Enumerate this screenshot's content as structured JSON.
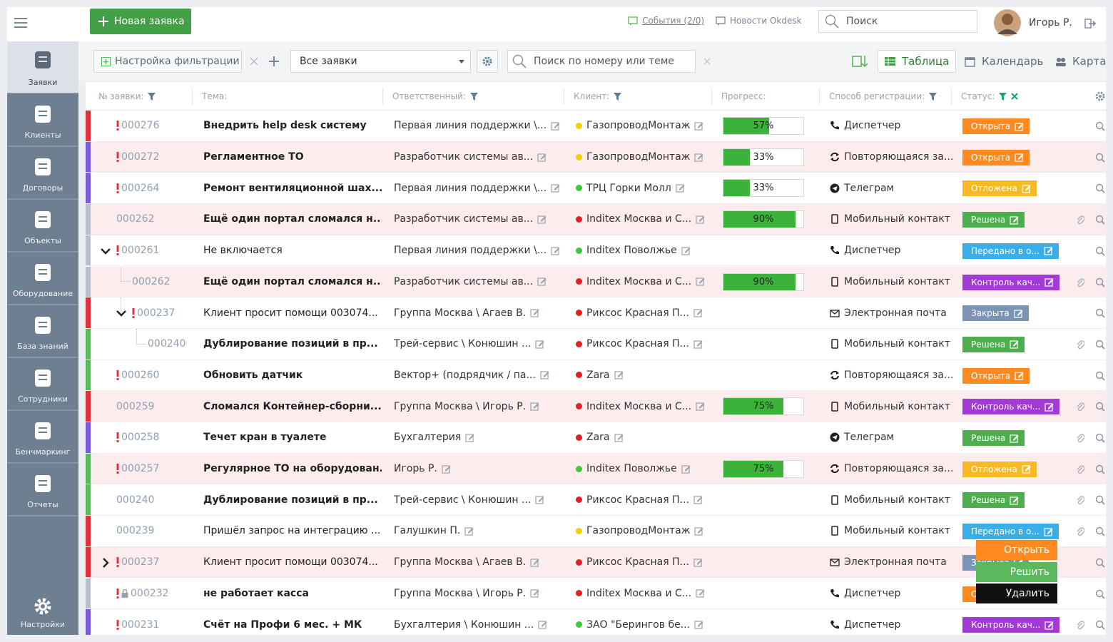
{
  "topbar": {
    "new_button": "Новая заявка",
    "events": "События (2/0)",
    "news": "Новости Okdesk",
    "search": "Поиск",
    "user": "Игорь Р."
  },
  "sidebar": {
    "items": [
      "Заявки",
      "Клиенты",
      "Договоры",
      "Объекты",
      "Оборудование",
      "База знаний",
      "Сотрудники",
      "Бенчмаркинг",
      "Отчеты"
    ],
    "settings": "Настройки"
  },
  "toolbar": {
    "filter": "Настройка фильтрации",
    "select": "Все заявки",
    "search": "Поиск по номеру или теме",
    "views": [
      "Таблица",
      "Календарь",
      "Карта"
    ]
  },
  "table": {
    "columns": [
      "№ заявки:",
      "Тема:",
      "Ответственный:",
      "Клиент:",
      "Прогресс:",
      "Способ регистрации:",
      "Статус:"
    ],
    "rows": [
      {
        "number": "000276",
        "urgent": true,
        "bold": true,
        "subject": "Внедрить help desk систему",
        "assignee": "Первая линия поддержки \\...",
        "client": "ГазопроводМонтаж",
        "client_color": "#f2cf00",
        "progress": 57,
        "progress_label": "57%",
        "channel": "Диспетчер",
        "channel_icon": "phone",
        "status": "Открыта",
        "status_color": "#ff8a1f",
        "stripe": "#e0303a"
      },
      {
        "number": "000272",
        "urgent": true,
        "bold": true,
        "highlight": true,
        "subject": "Регламентное ТО",
        "assignee": "Разработчик системы ав...",
        "client": "ГазопроводМонтаж",
        "client_color": "#f2cf00",
        "progress": 33,
        "progress_label": "33%",
        "channel": "Повторяющаяся за...",
        "channel_icon": "repeat",
        "status": "Открыта",
        "status_color": "#ff8a1f",
        "stripe": "#7b5bd6"
      },
      {
        "number": "000264",
        "urgent": true,
        "bold": true,
        "subject": "Ремонт вентиляционной шах...",
        "assignee": "Первая линия поддержки \\...",
        "client": "ТРЦ Горки Молл",
        "client_color": "#3dc93d",
        "progress": 33,
        "progress_label": "33%",
        "channel": "Телеграм",
        "channel_icon": "telegram",
        "status": "Отложена",
        "status_color": "#f7b924",
        "stripe": "#7b5bd6"
      },
      {
        "number": "000262",
        "bold": true,
        "highlight": true,
        "attach": true,
        "subject": "Ещё один портал сломался н...",
        "assignee": "Разработчик системы ав...",
        "client": "Inditex Москва и С...",
        "client_color": "#e42020",
        "progress": 90,
        "progress_label": "90%",
        "channel": "Мобильный контакт",
        "channel_icon": "mobile",
        "status": "Решена",
        "status_color": "#4cae4c",
        "stripe": "#b9c0c9"
      },
      {
        "number": "000261",
        "urgent": true,
        "expand": "down",
        "subject": "Не включается",
        "assignee": "Первая линия поддержки \\...",
        "client": "Inditex Поволжье",
        "client_color": "#3dc93d",
        "channel": "Диспетчер",
        "channel_icon": "phone",
        "status": "Передано в о...",
        "status_color": "#3aaee8",
        "stripe": "#b9c0c9"
      },
      {
        "number": "000262",
        "depth": 1,
        "bold": true,
        "highlight": true,
        "attach": true,
        "subject": "Ещё один портал сломался н...",
        "assignee": "Разработчик системы ав...",
        "client": "Inditex Москва и С...",
        "client_color": "#e42020",
        "progress": 90,
        "progress_label": "90%",
        "channel": "Мобильный контакт",
        "channel_icon": "mobile",
        "status": "Контроль кач...",
        "status_color": "#a23ad6",
        "stripe": "#b9c0c9"
      },
      {
        "number": "000237",
        "depth": 1,
        "urgent": true,
        "expand": "down",
        "subject": "Клиент просит помощи 003074...",
        "assignee": "Группа Москва \\ Агаев В.",
        "client": "Риксос Красная П...",
        "client_color": "#e42020",
        "channel": "Электронная почта",
        "channel_icon": "email",
        "status": "Закрыта",
        "status_color": "#7b93b5",
        "stripe": "#e0303a"
      },
      {
        "number": "000240",
        "depth": 2,
        "bold": true,
        "attach": true,
        "subject": "Дублирование позиций в пр...",
        "assignee": "Трей-сервис \\ Конюшин ...",
        "client": "Риксос Красная П...",
        "client_color": "#e42020",
        "channel": "Мобильный контакт",
        "channel_icon": "mobile",
        "status": "Решена",
        "status_color": "#4cae4c",
        "stripe": "#5cb85c"
      },
      {
        "number": "000260",
        "urgent": true,
        "bold": true,
        "subject": "Обновить датчик",
        "assignee": "Вектор+ (подрядчик / па...",
        "client": "Zara",
        "client_color": "#e42020",
        "channel": "Повторяющаяся за...",
        "channel_icon": "repeat",
        "status": "Открыта",
        "status_color": "#ff8a1f",
        "stripe": "#5cb85c"
      },
      {
        "number": "000259",
        "bold": true,
        "highlight": true,
        "attach": true,
        "subject": "Сломался Контейнер-сборни...",
        "assignee": "Группа Москва \\ Игорь Р.",
        "client": "Inditex Москва и С...",
        "client_color": "#e42020",
        "progress": 75,
        "progress_label": "75%",
        "channel": "Мобильный контакт",
        "channel_icon": "mobile",
        "status": "Контроль кач...",
        "status_color": "#a23ad6",
        "stripe": "#e0303a"
      },
      {
        "number": "000258",
        "urgent": true,
        "bold": true,
        "attach": true,
        "subject": "Течет кран в туалете",
        "assignee": "Бухгалтерия",
        "client": "Zara",
        "client_color": "#e42020",
        "channel": "Телеграм",
        "channel_icon": "telegram",
        "status": "Решена",
        "status_color": "#4cae4c",
        "stripe": "#7b5bd6"
      },
      {
        "number": "000257",
        "urgent": true,
        "bold": true,
        "highlight": true,
        "attach": true,
        "subject": "Регулярное ТО на оборудован...",
        "assignee": "Игорь Р.",
        "client": "Inditex Поволжье",
        "client_color": "#3dc93d",
        "progress": 75,
        "progress_label": "75%",
        "channel": "Повторяющаяся за...",
        "channel_icon": "repeat",
        "status": "Отложена",
        "status_color": "#f7b924",
        "stripe": "#5cb85c"
      },
      {
        "number": "000240",
        "bold": true,
        "attach": true,
        "subject": "Дублирование позиций в пр...",
        "assignee": "Трей-сервис \\ Конюшин ...",
        "client": "Риксос Красная П...",
        "client_color": "#e42020",
        "channel": "Мобильный контакт",
        "channel_icon": "mobile",
        "status": "Решена",
        "status_color": "#4cae4c",
        "stripe": "#5cb85c"
      },
      {
        "number": "000239",
        "attach": true,
        "subject": "Пришёл запрос на интеграцию ...",
        "assignee": "Галушкин П.",
        "client": "ГазопроводМонтаж",
        "client_color": "#f2cf00",
        "channel": "Мобильный контакт",
        "channel_icon": "mobile",
        "status": "Передано в о...",
        "status_color": "#3aaee8",
        "stripe": "#e0303a"
      },
      {
        "number": "000237",
        "urgent": true,
        "expand": "right",
        "highlight": true,
        "subject": "Клиент просит помощи 003074...",
        "assignee": "Группа Москва \\ Агаев В.",
        "client": "Риксос Красная П...",
        "client_color": "#e42020",
        "channel": "Электронная почта",
        "channel_icon": "email",
        "status": "Закрыта",
        "status_color": "#7b93b5",
        "stripe": "#e0303a"
      },
      {
        "number": "000232",
        "urgent": true,
        "locked": true,
        "bold": true,
        "subject": "не работает касса",
        "assignee": "Группа Москва \\ Игорь Р.",
        "client": "Inditex Москва и С...",
        "client_color": "#e42020",
        "channel": "Диспетчер",
        "channel_icon": "phone",
        "status": "Открыта",
        "status_color": "#ff8a1f",
        "stripe": "#b9c0c9"
      },
      {
        "number": "000231",
        "urgent": true,
        "bold": true,
        "attach": true,
        "subject": "Счёт на Профи 6 мес. + МК",
        "assignee": "Бухгалтерия \\ Конюшин ...",
        "client": "ЗАО \"Берингов бе...",
        "client_color": "#3dc93d",
        "channel": "Диспетчер",
        "channel_icon": "phone",
        "status": "Контроль кач...",
        "status_color": "#a23ad6",
        "stripe": "#7b5bd6"
      }
    ]
  },
  "context_menu": {
    "items": [
      "Открыть",
      "Решить",
      "Удалить"
    ],
    "colors": [
      "#ff8a1f",
      "#5cb85c",
      "#111111"
    ]
  }
}
